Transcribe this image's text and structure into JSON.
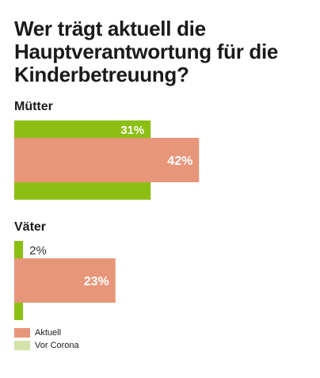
{
  "chart_data": {
    "type": "bar",
    "title": "Wer trägt aktuell die Hauptverantwortung für die Kinderbetreuung?",
    "categories": [
      "Mütter",
      "Väter"
    ],
    "series": [
      {
        "name": "Vor Corona",
        "values": [
          31,
          2
        ],
        "labels": [
          "31%",
          "2%"
        ]
      },
      {
        "name": "Aktuell",
        "values": [
          42,
          23
        ],
        "labels": [
          "42%",
          "23%"
        ]
      }
    ],
    "value_unit": "%",
    "xlim": [
      0,
      54
    ],
    "legend_placement": "bottom-left",
    "grid": false
  },
  "colors": {
    "vor_corona_bar": "#8cbf14",
    "aktuell_bar": "#e8967a",
    "vor_corona_swatch": "#d3e3a9",
    "aktuell_swatch": "#e8967a",
    "label_inside": "#ffffff",
    "label_outside": "#333333"
  }
}
